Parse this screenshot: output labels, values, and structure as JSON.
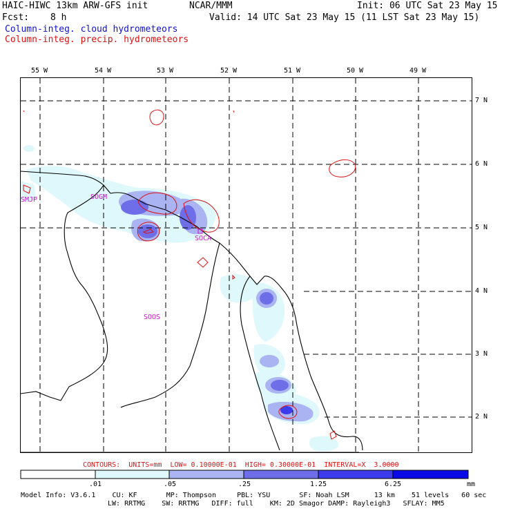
{
  "header": {
    "model_title": "HAIC-HIWC 13km ARW-GFS init",
    "center": "NCAR/MMM",
    "init": "Init: 06 UTC Sat 23 May 15",
    "fcst_label": "Fcst:",
    "fcst_value": "8 h",
    "valid": "Valid: 14 UTC Sat 23 May 15 (11 LST Sat 23 May 15)",
    "field_cloud": "Column-integ. cloud hydrometeors",
    "field_precip": "Column-integ. precip. hydrometeors"
  },
  "colors": {
    "cloud_text": "#1010d0",
    "precip_contour": "#e01010",
    "station_label": "#d010d0",
    "shade_1": "#dff8fb",
    "shade_2": "#aab4f2",
    "shade_3": "#6e6ee8",
    "shade_4": "#3c3cec",
    "shade_5": "#0a0ae6"
  },
  "map": {
    "lon_labels": [
      "55 W",
      "54 W",
      "53 W",
      "52 W",
      "51 W",
      "50 W",
      "49 W"
    ],
    "lat_labels": [
      "7 N",
      "6 N",
      "5 N",
      "4 N",
      "3 N",
      "2 N"
    ],
    "stations": [
      "SMJP",
      "SOGM",
      "SOCA",
      "SOOS"
    ]
  },
  "legend": {
    "contour_info": "CONTOURS:  UNITS=mm  LOW= 0.10000E-01  HIGH= 0.30000E-01  INTERVAL=X  3.0000",
    "ticks": [
      ".01",
      ".05",
      ".25",
      "1.25",
      "6.25"
    ],
    "units": "mm"
  },
  "footer": {
    "line1": "Model Info: V3.6.1    CU: KF       MP: Thompson     PBL: YSU       SF: Noah LSM      13 km    51 levels   60 sec",
    "line2": "LW: RRTMG    SW: RRTMG   DIFF: full    KM: 2D Smagor DAMP: Rayleigh3   SFLAY: MM5"
  }
}
